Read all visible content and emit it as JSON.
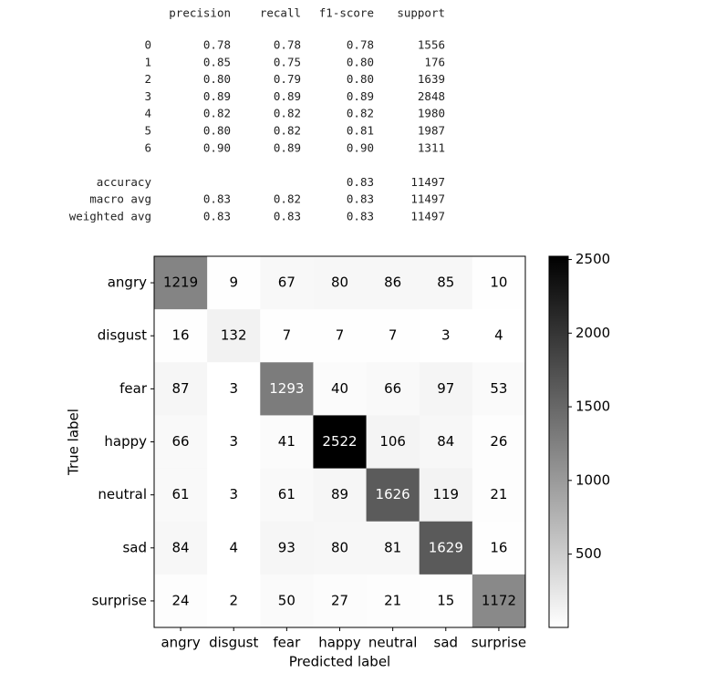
{
  "report": {
    "columns": [
      "precision",
      "recall",
      "f1-score",
      "support"
    ],
    "rows": [
      [
        "0",
        "0.78",
        "0.78",
        "0.78",
        "1556"
      ],
      [
        "1",
        "0.85",
        "0.75",
        "0.80",
        "176"
      ],
      [
        "2",
        "0.80",
        "0.79",
        "0.80",
        "1639"
      ],
      [
        "3",
        "0.89",
        "0.89",
        "0.89",
        "2848"
      ],
      [
        "4",
        "0.82",
        "0.82",
        "0.82",
        "1980"
      ],
      [
        "5",
        "0.80",
        "0.82",
        "0.81",
        "1987"
      ],
      [
        "6",
        "0.90",
        "0.89",
        "0.90",
        "1311"
      ],
      [
        "accuracy",
        null,
        null,
        "0.83",
        "11497"
      ],
      [
        "macro avg",
        "0.83",
        "0.82",
        "0.83",
        "11497"
      ],
      [
        "weighted avg",
        "0.83",
        "0.83",
        "0.83",
        "11497"
      ]
    ]
  },
  "chart_data": {
    "type": "heatmap",
    "xlabel": "Predicted label",
    "ylabel": "True label",
    "x_categories": [
      "angry",
      "disgust",
      "fear",
      "happy",
      "neutral",
      "sad",
      "surprise"
    ],
    "y_categories": [
      "angry",
      "disgust",
      "fear",
      "happy",
      "neutral",
      "sad",
      "surprise"
    ],
    "values": [
      [
        1219,
        9,
        67,
        80,
        86,
        85,
        10
      ],
      [
        16,
        132,
        7,
        7,
        7,
        3,
        4
      ],
      [
        87,
        3,
        1293,
        40,
        66,
        97,
        53
      ],
      [
        66,
        3,
        41,
        2522,
        106,
        84,
        26
      ],
      [
        61,
        3,
        61,
        89,
        1626,
        119,
        21
      ],
      [
        84,
        4,
        93,
        80,
        81,
        1629,
        16
      ],
      [
        24,
        2,
        50,
        27,
        21,
        15,
        1172
      ]
    ],
    "colormap": "gray_r",
    "clim": [
      2,
      2522
    ],
    "cticks": [
      500,
      1000,
      1500,
      2000,
      2500
    ]
  }
}
